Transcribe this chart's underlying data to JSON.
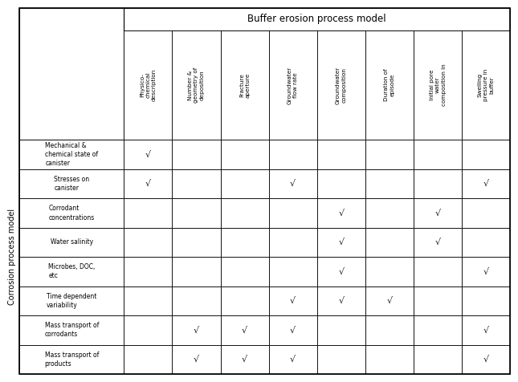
{
  "title": "Buffer erosion process model",
  "col_labels": [
    "Physico-\nchemical\ndescription",
    "Number &\ngeometry of\ndeposition",
    "Fracture\naperture",
    "Groundwater\nflow rate",
    "Groundwater\ncomposition",
    "Duration of\nepisode",
    "Initial pore\nwater\ncomposition in",
    "Swelling\npressure in\nbuffer"
  ],
  "row_labels": [
    "Mechanical &\nchemical state of\ncanister",
    "Stresses on\ncanister",
    "Corrodant\nconcentrations",
    "Water salinity",
    "Microbes, DOC,\netc",
    "Time dependent\nvariability",
    "Mass transport of\ncorrodants",
    "Mass transport of\nproducts"
  ],
  "row_axis_label": "Corrosion process model",
  "checkmarks": [
    [
      1,
      0,
      0,
      0,
      0,
      0,
      0,
      0
    ],
    [
      1,
      0,
      0,
      1,
      0,
      0,
      0,
      1
    ],
    [
      0,
      0,
      0,
      0,
      1,
      0,
      1,
      0
    ],
    [
      0,
      0,
      0,
      0,
      1,
      0,
      1,
      0
    ],
    [
      0,
      0,
      0,
      0,
      1,
      0,
      0,
      1
    ],
    [
      0,
      0,
      0,
      1,
      1,
      1,
      0,
      0
    ],
    [
      0,
      1,
      1,
      1,
      0,
      0,
      0,
      1
    ],
    [
      0,
      1,
      1,
      1,
      0,
      0,
      0,
      1
    ]
  ],
  "check_symbol": "√"
}
